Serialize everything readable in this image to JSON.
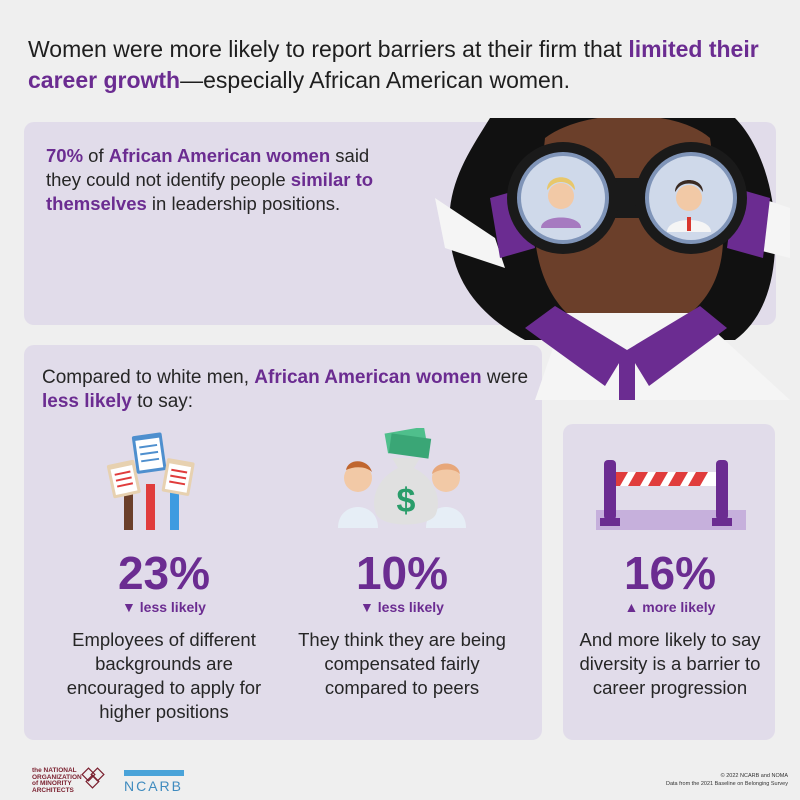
{
  "headline": {
    "part1": "Women were more likely to report barriers at their firm that ",
    "accent": "limited their career growth",
    "part2": "—especially African American women."
  },
  "top_panel": {
    "pct": "70%",
    "t1": " of ",
    "group": "African American women",
    "t2": " said they could not identify people ",
    "highlight": "similar to themselves",
    "t3": " in leadership positions."
  },
  "compare": {
    "t1": "Compared to white men, ",
    "group": "African American women",
    "t2": " were ",
    "highlight": "less likely",
    "t3": " to say:"
  },
  "stats": [
    {
      "pct": "23%",
      "direction": "▼ less likely",
      "desc": "Employees of different backgrounds are encouraged to apply for higher positions",
      "icon": "raised-hands-clipboards-icon"
    },
    {
      "pct": "10%",
      "direction": "▼ less likely",
      "desc": "They think they are being compensated fairly compared to peers",
      "icon": "money-bag-icon"
    },
    {
      "pct": "16%",
      "direction": "▲ more likely",
      "desc": "And more likely to say diversity is a barrier to career progression",
      "icon": "barrier-icon"
    }
  ],
  "footer": {
    "noma": [
      "the NATIONAL",
      "ORGANIZATION",
      "of MINORITY",
      "ARCHITECTS"
    ],
    "ncarb": "NCARB",
    "copyright": "© 2022 NCARB and NOMA",
    "source": "Data from the 2021 Baseline on Belonging Survey"
  },
  "colors": {
    "accent": "#6b2c91",
    "panel": "#e1dcea",
    "background": "#efefef"
  }
}
